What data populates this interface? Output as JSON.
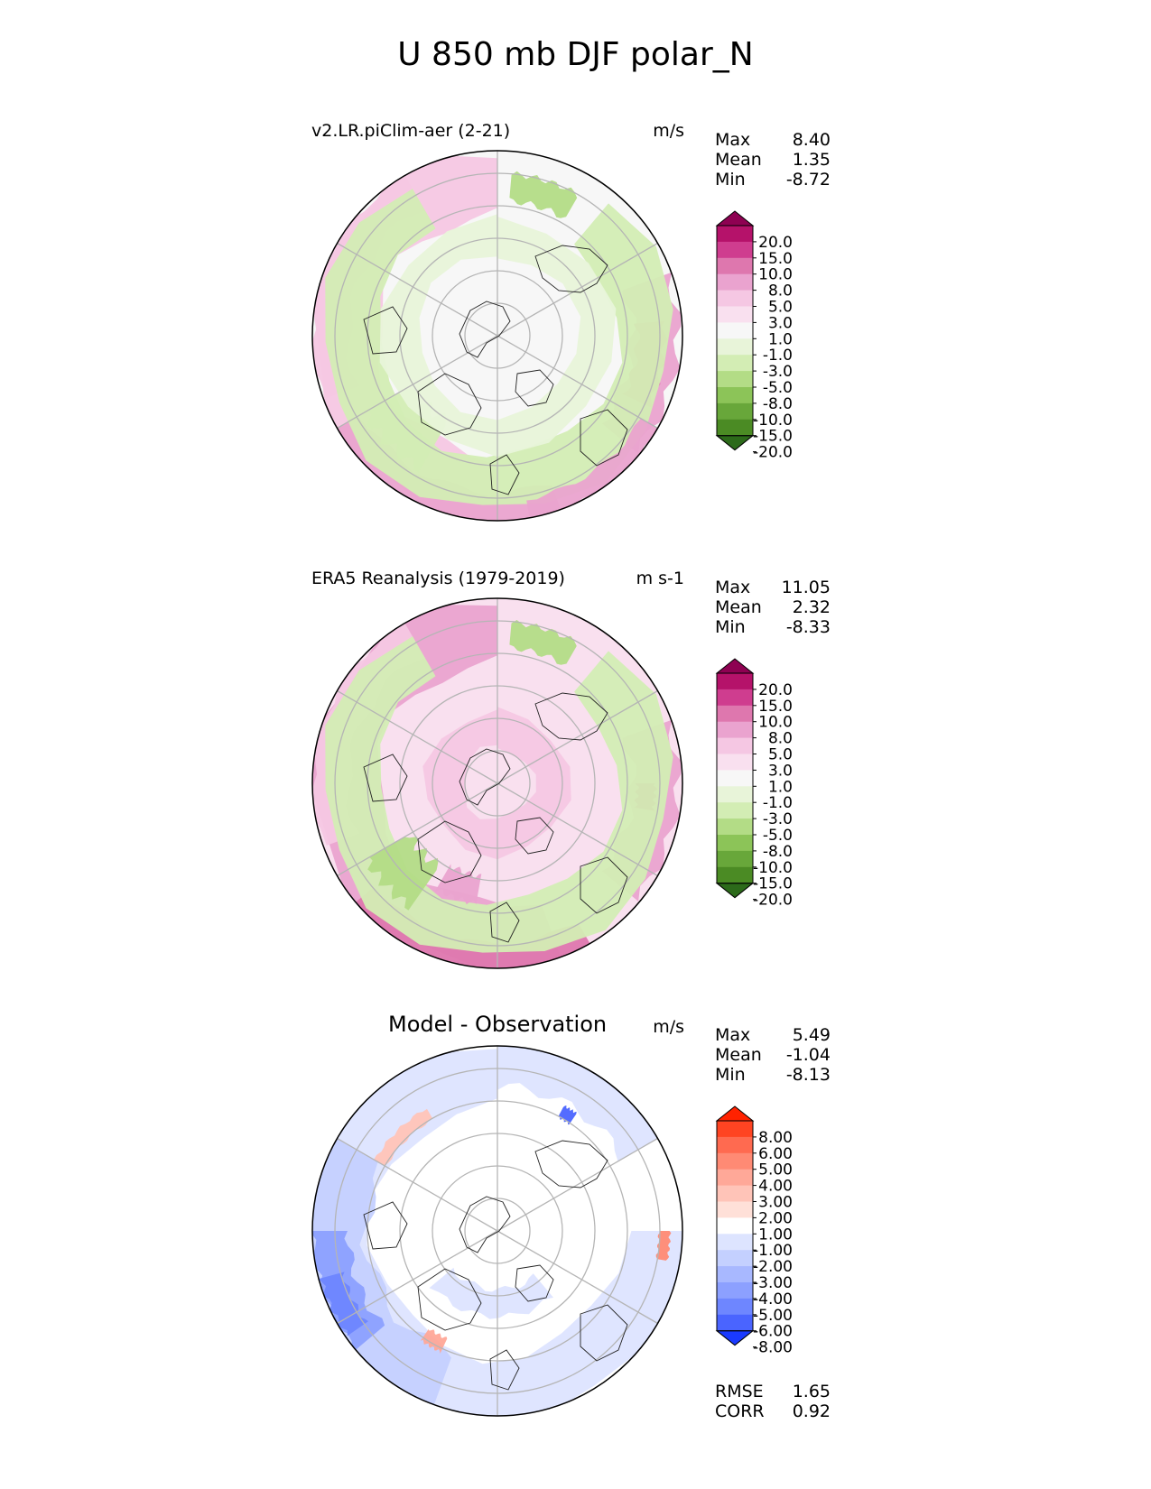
{
  "title": "U 850 mb DJF polar_N",
  "chart_data": [
    {
      "type": "heatmap",
      "projection": "polar stereographic (north pole)",
      "title": "v2.LR.piClim-aer (2-21)",
      "units": "m/s",
      "stats": [
        {
          "label": "Max",
          "value": "8.40"
        },
        {
          "label": "Mean",
          "value": "1.35"
        },
        {
          "label": "Min",
          "value": "-8.72"
        }
      ],
      "colorbar": {
        "ticks": [
          "20.0",
          "15.0",
          "10.0",
          "8.0",
          "5.0",
          "3.0",
          "1.0",
          "-1.0",
          "-3.0",
          "-5.0",
          "-8.0",
          "-10.0",
          "-15.0",
          "-20.0"
        ],
        "colors": [
          "#8e0152",
          "#b5126a",
          "#cf3d8f",
          "#de77ae",
          "#eaa3cf",
          "#f5c7e3",
          "#f9e0ef",
          "#f7f7f7",
          "#e8f4d9",
          "#d3edb4",
          "#b3dc86",
          "#8cc458",
          "#68a73a",
          "#4b8b24",
          "#2c6a1a"
        ],
        "extend": "both"
      }
    },
    {
      "type": "heatmap",
      "projection": "polar stereographic (north pole)",
      "title": "ERA5 Reanalysis (1979-2019)",
      "units": "m s-1",
      "stats": [
        {
          "label": "Max",
          "value": "11.05"
        },
        {
          "label": "Mean",
          "value": "2.32"
        },
        {
          "label": "Min",
          "value": "-8.33"
        }
      ],
      "colorbar": {
        "ticks": [
          "20.0",
          "15.0",
          "10.0",
          "8.0",
          "5.0",
          "3.0",
          "1.0",
          "-1.0",
          "-3.0",
          "-5.0",
          "-8.0",
          "-10.0",
          "-15.0",
          "-20.0"
        ],
        "colors": [
          "#8e0152",
          "#b5126a",
          "#cf3d8f",
          "#de77ae",
          "#eaa3cf",
          "#f5c7e3",
          "#f9e0ef",
          "#f7f7f7",
          "#e8f4d9",
          "#d3edb4",
          "#b3dc86",
          "#8cc458",
          "#68a73a",
          "#4b8b24",
          "#2c6a1a"
        ],
        "extend": "both"
      }
    },
    {
      "type": "heatmap",
      "projection": "polar stereographic (north pole)",
      "title": "Model - Observation",
      "units": "m/s",
      "stats": [
        {
          "label": "Max",
          "value": "5.49"
        },
        {
          "label": "Mean",
          "value": "-1.04"
        },
        {
          "label": "Min",
          "value": "-8.13"
        }
      ],
      "colorbar": {
        "ticks": [
          "8.00",
          "6.00",
          "5.00",
          "4.00",
          "3.00",
          "2.00",
          "1.00",
          "-1.00",
          "-2.00",
          "-3.00",
          "-4.00",
          "-5.00",
          "-6.00",
          "-8.00"
        ],
        "colors": [
          "#ff2200",
          "#ff4422",
          "#ff6a50",
          "#ff8a74",
          "#ffa898",
          "#ffc4b8",
          "#ffe0d8",
          "#ffffff",
          "#dde4ff",
          "#c4d0ff",
          "#a8b8ff",
          "#8ca0ff",
          "#6e86ff",
          "#4a64ff",
          "#1a3aff"
        ],
        "extend": "both"
      },
      "metrics": [
        {
          "label": "RMSE",
          "value": "1.65"
        },
        {
          "label": "CORR",
          "value": "0.92"
        }
      ]
    }
  ]
}
